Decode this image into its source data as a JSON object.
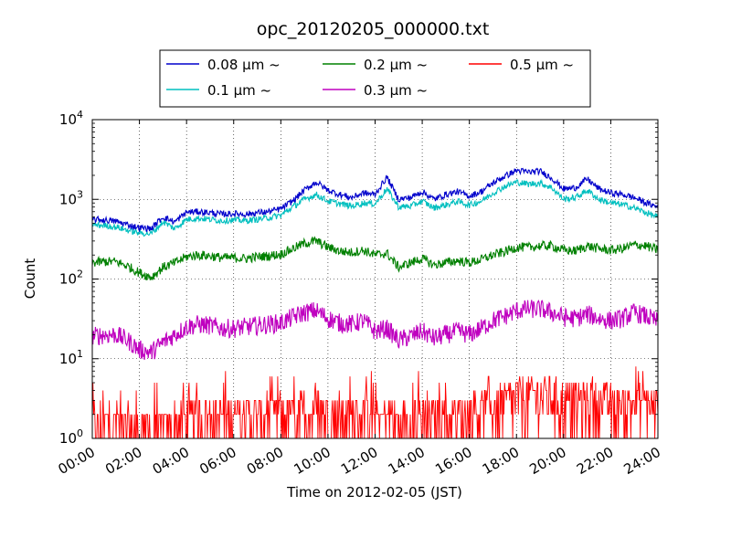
{
  "chart_data": {
    "type": "line",
    "title": "opc_20120205_000000.txt",
    "xlabel": "Time on 2012-02-05 (JST)",
    "ylabel": "Count",
    "y_scale": "log",
    "ylim": [
      1,
      10000
    ],
    "xlim": [
      "00:00",
      "24:00"
    ],
    "grid": true,
    "legend_position": "top-center",
    "x_ticks": [
      "00:00",
      "02:00",
      "04:00",
      "06:00",
      "08:00",
      "10:00",
      "12:00",
      "14:00",
      "16:00",
      "18:00",
      "20:00",
      "22:00",
      "24:00"
    ],
    "y_ticks": [
      {
        "value": 1,
        "base": "10",
        "exp": "0"
      },
      {
        "value": 10,
        "base": "10",
        "exp": "1"
      },
      {
        "value": 100,
        "base": "10",
        "exp": "2"
      },
      {
        "value": 1000,
        "base": "10",
        "exp": "3"
      },
      {
        "value": 10000,
        "base": "10",
        "exp": "4"
      }
    ],
    "x_hours": [
      0,
      0.5,
      1,
      1.5,
      2,
      2.5,
      3,
      3.5,
      4,
      4.5,
      5,
      5.5,
      6,
      6.5,
      7,
      7.5,
      8,
      8.5,
      9,
      9.5,
      10,
      10.5,
      11,
      11.5,
      12,
      12.5,
      13,
      13.5,
      14,
      14.5,
      15,
      15.5,
      16,
      16.5,
      17,
      17.5,
      18,
      18.5,
      19,
      19.5,
      20,
      20.5,
      21,
      21.5,
      22,
      22.5,
      23,
      23.5,
      24
    ],
    "series": [
      {
        "name": "0.08 µm ~",
        "color": "#0000cc",
        "values": [
          560,
          550,
          530,
          480,
          440,
          430,
          600,
          520,
          690,
          700,
          680,
          650,
          660,
          650,
          680,
          700,
          760,
          950,
          1300,
          1650,
          1300,
          1150,
          1050,
          1200,
          1150,
          1900,
          1000,
          1050,
          1250,
          1000,
          1150,
          1250,
          1100,
          1250,
          1600,
          1950,
          2300,
          2200,
          2250,
          1850,
          1350,
          1400,
          1800,
          1350,
          1200,
          1150,
          1050,
          900,
          800
        ]
      },
      {
        "name": "0.1 µm ~",
        "color": "#00bfbf",
        "values": [
          480,
          470,
          450,
          410,
          380,
          370,
          520,
          430,
          560,
          580,
          560,
          540,
          550,
          540,
          560,
          590,
          630,
          800,
          1000,
          1150,
          950,
          880,
          820,
          900,
          880,
          1350,
          800,
          820,
          950,
          780,
          850,
          940,
          850,
          950,
          1200,
          1450,
          1650,
          1550,
          1600,
          1400,
          1000,
          1050,
          1300,
          1000,
          900,
          860,
          780,
          680,
          600
        ]
      },
      {
        "name": "0.2 µm ~",
        "color": "#008000",
        "values": [
          160,
          165,
          165,
          145,
          120,
          105,
          140,
          160,
          190,
          200,
          195,
          185,
          185,
          180,
          190,
          195,
          205,
          240,
          280,
          300,
          250,
          225,
          215,
          230,
          200,
          210,
          140,
          160,
          180,
          150,
          160,
          170,
          160,
          175,
          200,
          220,
          250,
          250,
          260,
          260,
          230,
          225,
          260,
          240,
          230,
          240,
          270,
          260,
          230
        ]
      },
      {
        "name": "0.3 µm ~",
        "color": "#bf00bf",
        "values": [
          19,
          20,
          20,
          17,
          13,
          12,
          16,
          20,
          25,
          27,
          26,
          24,
          24,
          25,
          26,
          27,
          28,
          33,
          38,
          40,
          32,
          28,
          27,
          30,
          22,
          24,
          17,
          19,
          22,
          18,
          20,
          22,
          20,
          24,
          30,
          34,
          40,
          42,
          42,
          38,
          33,
          32,
          36,
          32,
          30,
          32,
          38,
          34,
          29
        ]
      },
      {
        "name": "0.5 µm ~",
        "color": "#ff0000",
        "values": [
          1.5,
          1.6,
          1.5,
          1.3,
          1.2,
          1.1,
          1.2,
          1.5,
          1.8,
          1.9,
          1.9,
          1.8,
          1.8,
          1.8,
          1.9,
          2,
          2,
          2.1,
          2.2,
          2.3,
          2.1,
          2,
          2,
          2.1,
          1.9,
          2,
          1.6,
          1.7,
          1.9,
          1.8,
          1.9,
          2,
          2,
          2.2,
          2.5,
          2.8,
          3.2,
          3.5,
          3.6,
          3.4,
          3,
          2.9,
          3.1,
          2.8,
          2.6,
          2.6,
          2.9,
          2.7,
          2.3
        ]
      }
    ]
  }
}
